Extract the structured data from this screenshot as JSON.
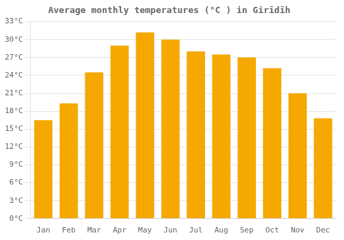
{
  "chart_data": {
    "type": "bar",
    "title": "Average monthly temperatures (°C ) in Girīdīh",
    "categories": [
      "Jan",
      "Feb",
      "Mar",
      "Apr",
      "May",
      "Jun",
      "Jul",
      "Aug",
      "Sep",
      "Oct",
      "Nov",
      "Dec"
    ],
    "values": [
      16.5,
      19.3,
      24.5,
      29.0,
      31.2,
      30.0,
      28.0,
      27.5,
      27.0,
      25.2,
      21.0,
      16.8
    ],
    "color": "#F5A800",
    "ylim": [
      0,
      33
    ],
    "yticks": [
      {
        "value": 0,
        "label": "0°C"
      },
      {
        "value": 3,
        "label": "3°C"
      },
      {
        "value": 6,
        "label": "6°C"
      },
      {
        "value": 9,
        "label": "9°C"
      },
      {
        "value": 12,
        "label": "12°C"
      },
      {
        "value": 15,
        "label": "15°C"
      },
      {
        "value": 18,
        "label": "18°C"
      },
      {
        "value": 21,
        "label": "21°C"
      },
      {
        "value": 24,
        "label": "24°C"
      },
      {
        "value": 27,
        "label": "27°C"
      },
      {
        "value": 30,
        "label": "30°C"
      },
      {
        "value": 33,
        "label": "33°C"
      }
    ],
    "grid": true
  }
}
